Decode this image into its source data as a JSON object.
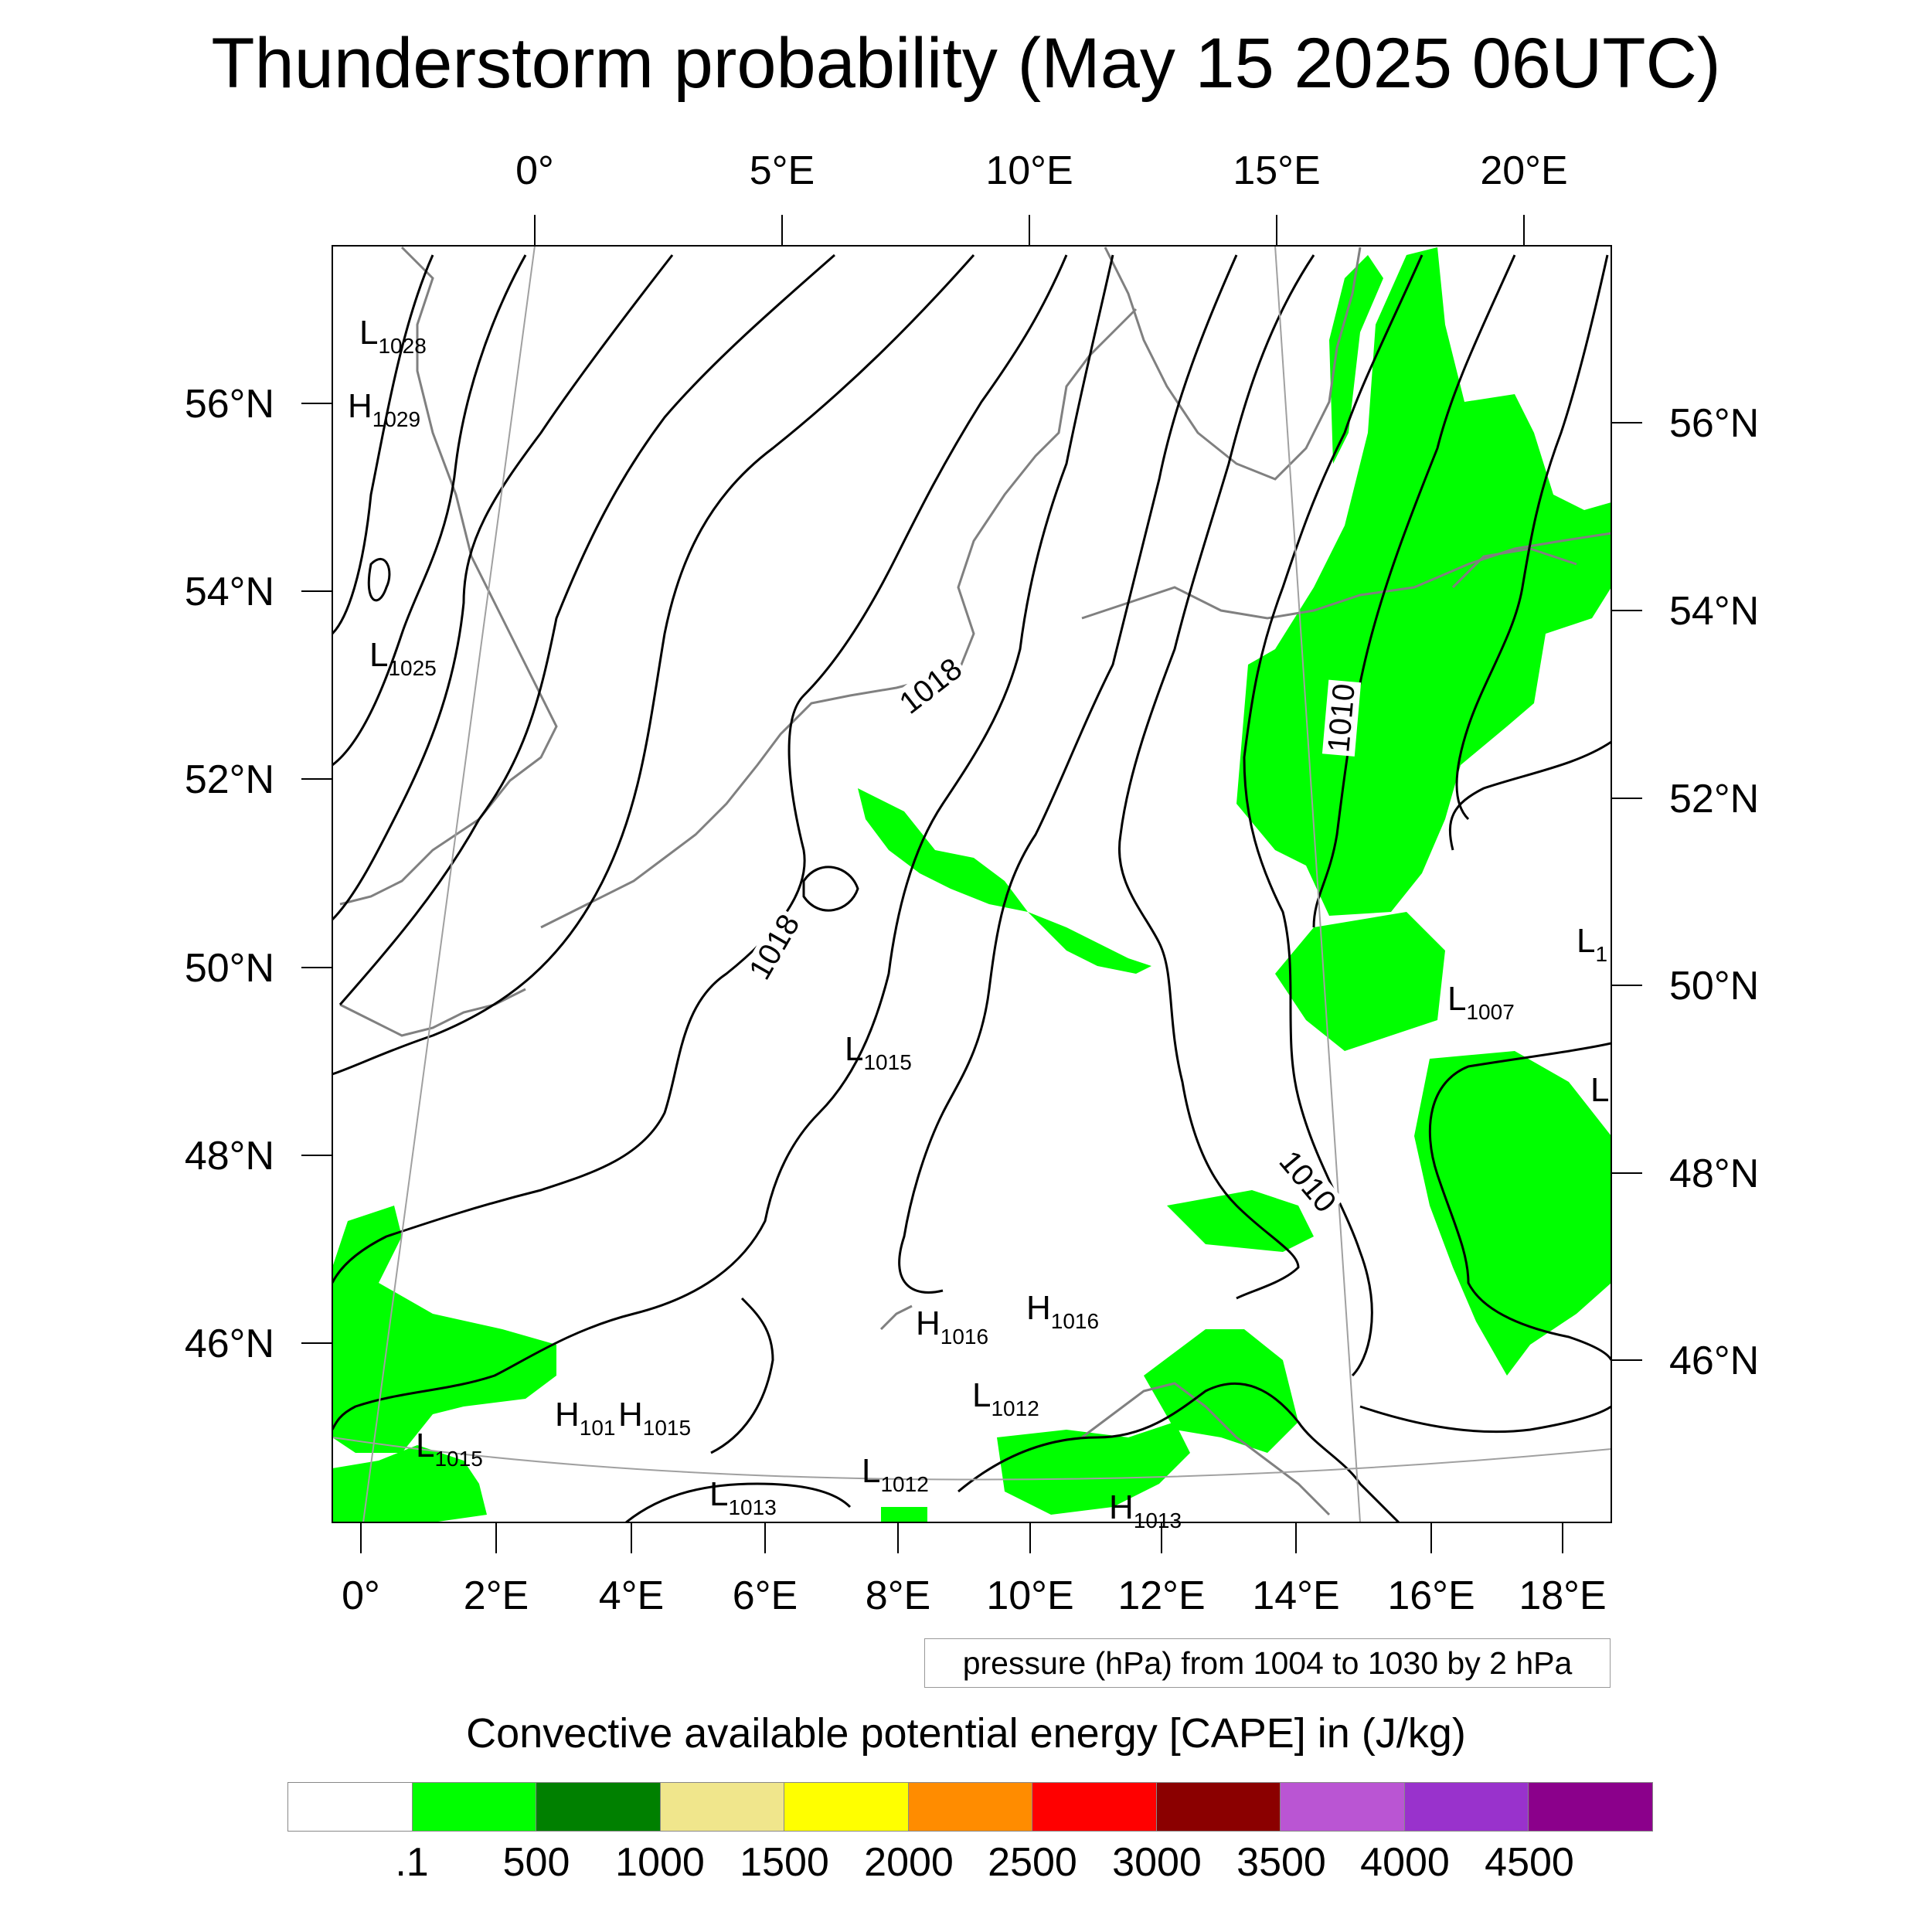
{
  "title": "Thunderstorm probability (May 15 2025 06UTC)",
  "top_lon_labels": [
    "0°",
    "5°E",
    "10°E",
    "15°E",
    "20°E"
  ],
  "bottom_lon_labels": [
    "0°",
    "2°E",
    "4°E",
    "6°E",
    "8°E",
    "10°E",
    "12°E",
    "14°E",
    "16°E",
    "18°E"
  ],
  "left_lat_labels": [
    "56°N",
    "54°N",
    "52°N",
    "50°N",
    "48°N",
    "46°N"
  ],
  "right_lat_labels": [
    "56°N",
    "54°N",
    "52°N",
    "50°N",
    "48°N",
    "46°N"
  ],
  "isobar_labels": [
    "1018",
    "1018",
    "1010",
    "1010"
  ],
  "pressure_centers": [
    {
      "letter": "L",
      "value": "1028"
    },
    {
      "letter": "H",
      "value": "1029"
    },
    {
      "letter": "L",
      "value": "1025"
    },
    {
      "letter": "L",
      "value": "1015"
    },
    {
      "letter": "H",
      "value": "1016"
    },
    {
      "letter": "H",
      "value": "1016"
    },
    {
      "letter": "H",
      "value": "101"
    },
    {
      "letter": "H",
      "value": "1015"
    },
    {
      "letter": "L",
      "value": "1012"
    },
    {
      "letter": "L",
      "value": "1015"
    },
    {
      "letter": "L",
      "value": "1013"
    },
    {
      "letter": "L",
      "value": "1012"
    },
    {
      "letter": "H",
      "value": "1013"
    },
    {
      "letter": "L",
      "value": "1007"
    },
    {
      "letter": "L",
      "value": "1"
    },
    {
      "letter": "L",
      "value": ""
    }
  ],
  "contour_note": "pressure (hPa) from 1004 to 1030 by 2 hPa",
  "legend": {
    "title": "Convective available potential energy [CAPE] in (J/kg)",
    "colors": [
      "#ffffff",
      "#00ff00",
      "#008000",
      "#f0e68c",
      "#ffff00",
      "#ff8c00",
      "#ff0000",
      "#8b0000",
      "#ba55d3",
      "#9932cc",
      "#8b008b"
    ],
    "labels": [
      ".1",
      "500",
      "1000",
      "1500",
      "2000",
      "2500",
      "3000",
      "3500",
      "4000",
      "4500"
    ]
  },
  "colors": {
    "cape_fill": "#00ff00",
    "isobar": "#000000",
    "coastline": "#808080",
    "grid": "#a0a0a0"
  }
}
